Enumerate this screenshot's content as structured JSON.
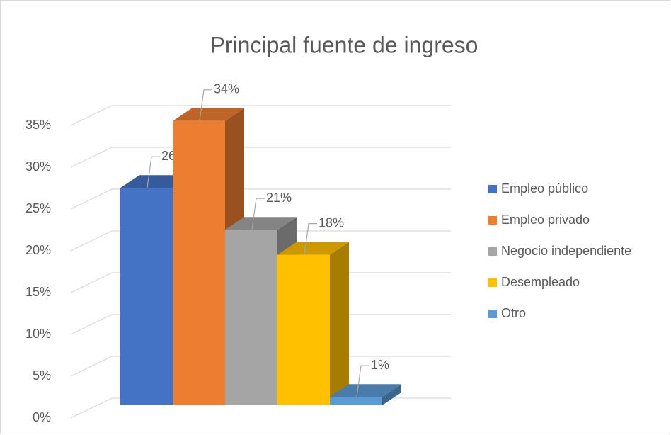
{
  "chart_data": {
    "type": "bar3d",
    "title": "Principal fuente de ingreso",
    "series": [
      {
        "name": "Empleo público",
        "color": "#4472c4",
        "values": [
          26
        ],
        "value_labels": [
          "26%"
        ]
      },
      {
        "name": "Empleo privado",
        "color": "#ed7d31",
        "values": [
          34
        ],
        "value_labels": [
          "34%"
        ]
      },
      {
        "name": "Negocio independiente",
        "color": "#a5a5a5",
        "values": [
          21
        ],
        "value_labels": [
          "21%"
        ]
      },
      {
        "name": "Desempleado",
        "color": "#ffc000",
        "values": [
          18
        ],
        "value_labels": [
          "18%"
        ]
      },
      {
        "name": "Otro",
        "color": "#5b9bd5",
        "values": [
          1
        ],
        "value_labels": [
          "1%"
        ]
      }
    ],
    "ylim": [
      0,
      35
    ],
    "yticks": [
      {
        "value": 0,
        "label": "0%"
      },
      {
        "value": 5,
        "label": "5%"
      },
      {
        "value": 10,
        "label": "10%"
      },
      {
        "value": 15,
        "label": "15%"
      },
      {
        "value": 20,
        "label": "20%"
      },
      {
        "value": 25,
        "label": "25%"
      },
      {
        "value": 30,
        "label": "30%"
      },
      {
        "value": 35,
        "label": "35%"
      }
    ],
    "grid": true,
    "legend": "right"
  }
}
